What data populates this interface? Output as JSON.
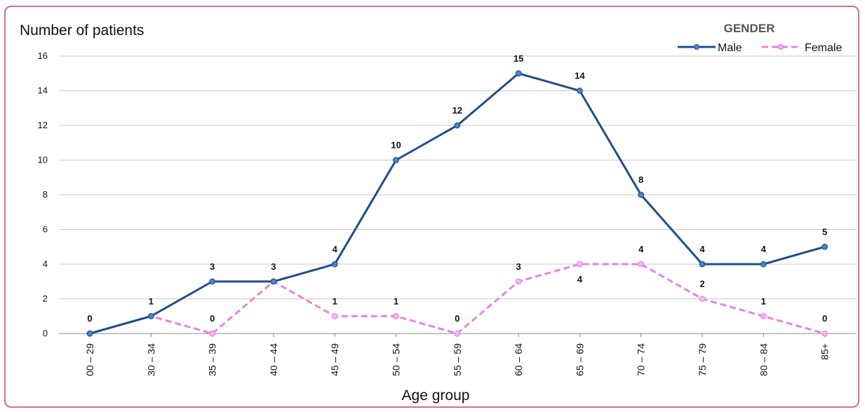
{
  "chart_data": {
    "type": "line",
    "ylabel": "Number of patients",
    "xlabel": "Age group",
    "ylim": [
      0,
      16
    ],
    "yticks": [
      0,
      2,
      4,
      6,
      8,
      10,
      12,
      14,
      16
    ],
    "grid": true,
    "legend_title": "GENDER",
    "legend_position": "top-right",
    "categories": [
      "00 – 29",
      "30 – 34",
      "35 – 39",
      "40 – 44",
      "45 – 49",
      "50 – 54",
      "55 – 59",
      "60 – 64",
      "65 – 69",
      "70 – 74",
      "75 – 79",
      "80 – 84",
      "85+"
    ],
    "series": [
      {
        "name": "Male",
        "color": "#1f4e8c",
        "marker": "#4a87c8",
        "style": "solid",
        "values": [
          0,
          1,
          3,
          3,
          4,
          10,
          12,
          15,
          14,
          8,
          4,
          4,
          5
        ]
      },
      {
        "name": "Female",
        "color": "#e683e6",
        "marker": "#f2b6f2",
        "style": "dashed",
        "values": [
          0,
          1,
          0,
          3,
          1,
          1,
          0,
          3,
          4,
          4,
          2,
          1,
          0
        ]
      }
    ]
  }
}
